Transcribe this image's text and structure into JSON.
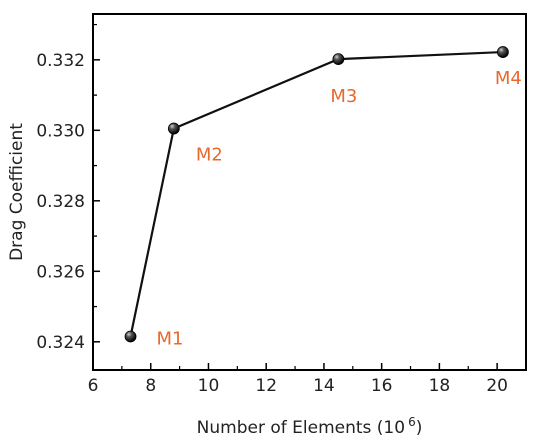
{
  "chart_data": {
    "type": "line",
    "xlabel": "Number of Elements (10",
    "xlabel_sup": "6",
    "xlabel_close": ")",
    "ylabel": "Drag  Coefficient",
    "xlim": [
      6,
      21
    ],
    "ylim": [
      0.3232,
      0.3333
    ],
    "xticks": [
      6,
      8,
      10,
      12,
      14,
      16,
      18,
      20
    ],
    "yticks": [
      "0.324",
      "0.326",
      "0.328",
      "0.330",
      "0.332"
    ],
    "grid": false,
    "series": [
      {
        "x": [
          7.3,
          8.8,
          14.5,
          20.2
        ],
        "y": [
          0.32415,
          0.33005,
          0.33202,
          0.33222
        ],
        "labels": [
          "M1",
          "M2",
          "M3",
          "M4"
        ]
      }
    ],
    "colors": {
      "line": "#111111",
      "marker": "#111111",
      "annotation": "#e8692e"
    }
  }
}
